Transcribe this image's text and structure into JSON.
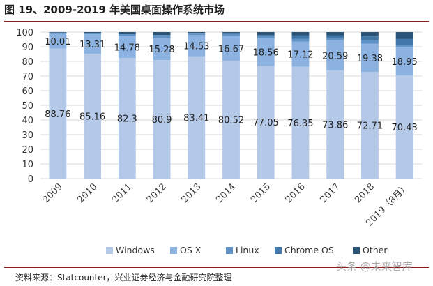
{
  "title": "图 19、2009-2019 年美国桌面操作系统市场",
  "source": "资料来源：Statcounter，兴业证券经济与金融研究院整理",
  "watermark": "头条 @未来智库",
  "colors": {
    "windows": "#b4c8e8",
    "osx": "#8bb2e0",
    "linux": "#5f92c6",
    "chromeos": "#4277aa",
    "other": "#2a5378",
    "grid": "#d9d9d9",
    "axis_text": "#333333",
    "label_text": "#222222",
    "title_rule": "#8a1c1c"
  },
  "chart_data": {
    "type": "bar",
    "stacked": true,
    "categories": [
      "2009",
      "2010",
      "2011",
      "2012",
      "2013",
      "2014",
      "2015",
      "2016",
      "2017",
      "2018",
      "2019（8月）"
    ],
    "series": [
      {
        "name": "Windows",
        "color_key": "windows",
        "values": [
          88.76,
          85.16,
          82.3,
          80.9,
          83.41,
          80.52,
          77.05,
          76.35,
          73.86,
          72.71,
          70.43
        ]
      },
      {
        "name": "OS X",
        "color_key": "osx",
        "values": [
          10.01,
          13.31,
          14.78,
          15.28,
          14.53,
          16.67,
          18.56,
          17.12,
          20.59,
          19.38,
          18.95
        ]
      },
      {
        "name": "Linux",
        "color_key": "linux",
        "values": [
          0.9,
          1.0,
          1.5,
          1.8,
          1.0,
          1.4,
          1.6,
          2.0,
          1.6,
          2.3,
          1.9
        ]
      },
      {
        "name": "Chrome OS",
        "color_key": "chromeos",
        "values": [
          0,
          0,
          0,
          0,
          0.1,
          0.3,
          0.8,
          2.2,
          1.8,
          2.6,
          4.0
        ]
      },
      {
        "name": "Other",
        "color_key": "other",
        "values": [
          0.33,
          0.53,
          1.42,
          2.02,
          0.96,
          1.11,
          1.99,
          2.33,
          2.15,
          3.01,
          4.72
        ]
      }
    ],
    "labeled_series": [
      "Windows",
      "OS X"
    ],
    "ylim": [
      0,
      100
    ],
    "yticks": [
      0,
      10,
      20,
      30,
      40,
      50,
      60,
      70,
      80,
      90,
      100
    ],
    "grid": true,
    "legend_position": "bottom"
  }
}
